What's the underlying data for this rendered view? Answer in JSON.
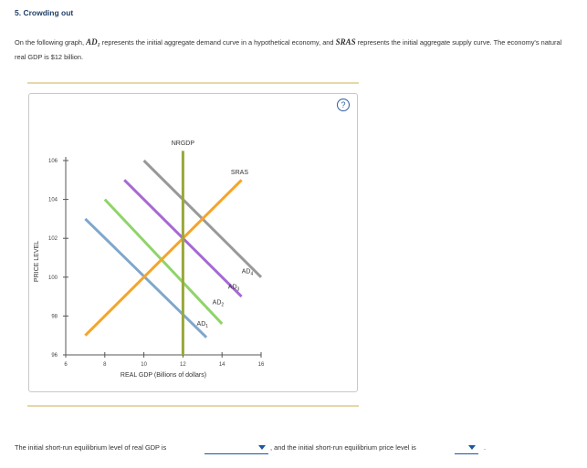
{
  "question": {
    "title": "5. Crowding out",
    "intro_pre": "On the following graph, ",
    "ad1": "AD₁",
    "intro_mid": " represents the initial aggregate demand curve in a hypothetical economy, and ",
    "sras": "SRAS",
    "intro_post": " represents the initial aggregate supply curve. The economy's natural real GDP is $12 billion."
  },
  "help": {
    "label": "?"
  },
  "chart_data": {
    "type": "line",
    "xlabel": "REAL GDP (Billions of dollars)",
    "ylabel": "PRICE LEVEL",
    "xlim": [
      6,
      16
    ],
    "ylim": [
      96,
      106
    ],
    "x_ticks": [
      "6",
      "8",
      "10",
      "12",
      "14",
      "16"
    ],
    "y_ticks": [
      "96",
      "98",
      "100",
      "102",
      "104",
      "106"
    ],
    "series": [
      {
        "name": "AD1",
        "label_main": "AD",
        "label_sub": "1",
        "color": "#7fa7cc",
        "points": [
          [
            7.0,
            103.0
          ],
          [
            13.2,
            96.9
          ]
        ]
      },
      {
        "name": "AD2",
        "label_main": "AD",
        "label_sub": "2",
        "color": "#8fd46a",
        "points": [
          [
            8.0,
            104.0
          ],
          [
            14.0,
            97.6
          ]
        ]
      },
      {
        "name": "AD3",
        "label_main": "AD",
        "label_sub": "3",
        "color": "#a66ad1",
        "points": [
          [
            9.0,
            105.0
          ],
          [
            15.0,
            99.0
          ]
        ]
      },
      {
        "name": "AD4",
        "label_main": "AD",
        "label_sub": "4",
        "color": "#999999",
        "points": [
          [
            10.0,
            106.0
          ],
          [
            16.0,
            100.0
          ]
        ]
      },
      {
        "name": "SRAS",
        "label_main": "SRAS",
        "label_sub": "",
        "color": "#f7a428",
        "points": [
          [
            7.0,
            97.0
          ],
          [
            15.0,
            105.0
          ]
        ]
      },
      {
        "name": "NRGDP",
        "label_main": "NRGDP",
        "label_sub": "",
        "color": "#9aa83a",
        "points": [
          [
            12.0,
            96.0
          ],
          [
            12.0,
            106.5
          ]
        ]
      }
    ],
    "label_positions": {
      "AD1": [
        13.0,
        97.5
      ],
      "AD2": [
        13.8,
        98.6
      ],
      "AD3": [
        14.6,
        99.4
      ],
      "AD4": [
        15.3,
        100.2
      ],
      "SRAS": [
        14.9,
        105.3
      ],
      "NRGDP": [
        12.0,
        106.8
      ]
    }
  },
  "answers": {
    "q1_text": "The initial short-run equilibrium level of real GDP is",
    "q2_text": ", and the initial short-run equilibrium price level is",
    "q3_text": "."
  }
}
